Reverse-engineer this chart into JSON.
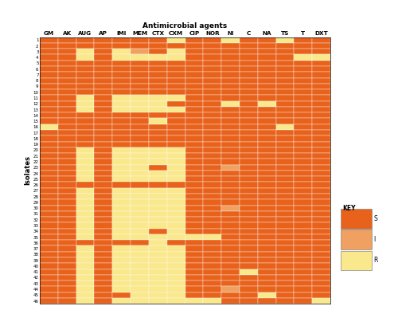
{
  "columns": [
    "GM",
    "AK",
    "AUG",
    "AP",
    "IMI",
    "MEM",
    "CTX",
    "CXM",
    "CIP",
    "NOR",
    "NI",
    "C",
    "NA",
    "TS",
    "T",
    "DXT"
  ],
  "title": "Antimicrobial agents",
  "ylabel": "Isolates",
  "color_S": "#E8621C",
  "color_I": "#F0A060",
  "color_R": "#FAE88C",
  "n_isolates": 46,
  "data": [
    [
      0,
      0,
      0,
      0,
      0,
      0,
      0,
      2,
      0,
      0,
      2,
      0,
      0,
      2,
      0,
      0
    ],
    [
      0,
      0,
      0,
      0,
      0,
      0,
      0,
      0,
      0,
      0,
      0,
      0,
      0,
      0,
      0,
      0
    ],
    [
      0,
      0,
      2,
      0,
      2,
      1,
      0,
      2,
      0,
      0,
      0,
      0,
      0,
      0,
      0,
      0
    ],
    [
      0,
      0,
      2,
      0,
      2,
      2,
      2,
      2,
      0,
      0,
      0,
      0,
      0,
      0,
      2,
      2
    ],
    [
      0,
      0,
      0,
      0,
      0,
      0,
      0,
      0,
      0,
      0,
      0,
      0,
      0,
      0,
      0,
      0
    ],
    [
      0,
      0,
      0,
      0,
      0,
      0,
      0,
      0,
      0,
      0,
      0,
      0,
      0,
      0,
      0,
      0
    ],
    [
      0,
      0,
      0,
      0,
      0,
      0,
      0,
      0,
      0,
      0,
      0,
      0,
      0,
      0,
      0,
      0
    ],
    [
      0,
      0,
      0,
      0,
      0,
      0,
      0,
      0,
      0,
      0,
      0,
      0,
      0,
      0,
      0,
      0
    ],
    [
      0,
      0,
      0,
      0,
      0,
      0,
      0,
      0,
      0,
      0,
      0,
      0,
      0,
      0,
      0,
      0
    ],
    [
      0,
      0,
      0,
      0,
      0,
      0,
      0,
      0,
      0,
      0,
      0,
      0,
      0,
      0,
      0,
      0
    ],
    [
      0,
      0,
      2,
      0,
      2,
      2,
      2,
      2,
      0,
      0,
      0,
      0,
      0,
      0,
      0,
      0
    ],
    [
      0,
      0,
      2,
      0,
      2,
      2,
      2,
      0,
      0,
      0,
      2,
      0,
      2,
      0,
      0,
      0
    ],
    [
      0,
      0,
      2,
      0,
      2,
      2,
      2,
      2,
      0,
      0,
      0,
      0,
      0,
      0,
      0,
      0
    ],
    [
      0,
      0,
      0,
      0,
      0,
      0,
      0,
      0,
      0,
      0,
      0,
      0,
      0,
      0,
      0,
      0
    ],
    [
      0,
      0,
      0,
      0,
      0,
      0,
      2,
      0,
      0,
      0,
      0,
      0,
      0,
      0,
      0,
      0
    ],
    [
      2,
      0,
      0,
      0,
      0,
      0,
      0,
      0,
      0,
      0,
      0,
      0,
      0,
      2,
      0,
      0
    ],
    [
      0,
      0,
      0,
      0,
      0,
      0,
      0,
      0,
      0,
      0,
      0,
      0,
      0,
      0,
      0,
      0
    ],
    [
      0,
      0,
      0,
      0,
      0,
      0,
      0,
      0,
      0,
      0,
      0,
      0,
      0,
      0,
      0,
      0
    ],
    [
      0,
      0,
      0,
      0,
      0,
      0,
      0,
      0,
      0,
      0,
      0,
      0,
      0,
      0,
      0,
      0
    ],
    [
      0,
      0,
      2,
      0,
      2,
      2,
      2,
      2,
      0,
      0,
      0,
      0,
      0,
      0,
      0,
      0
    ],
    [
      0,
      0,
      2,
      0,
      2,
      2,
      2,
      2,
      0,
      0,
      0,
      0,
      0,
      0,
      0,
      0
    ],
    [
      0,
      0,
      2,
      0,
      2,
      2,
      2,
      2,
      0,
      0,
      0,
      0,
      0,
      0,
      0,
      0
    ],
    [
      0,
      0,
      2,
      0,
      2,
      2,
      0,
      2,
      0,
      0,
      1,
      0,
      0,
      0,
      0,
      0
    ],
    [
      0,
      0,
      2,
      0,
      2,
      2,
      2,
      2,
      0,
      0,
      0,
      0,
      0,
      0,
      0,
      0
    ],
    [
      0,
      0,
      2,
      0,
      2,
      2,
      2,
      2,
      0,
      0,
      0,
      0,
      0,
      0,
      0,
      0
    ],
    [
      0,
      0,
      0,
      0,
      0,
      0,
      0,
      0,
      0,
      0,
      0,
      0,
      0,
      0,
      0,
      0
    ],
    [
      0,
      0,
      2,
      0,
      2,
      2,
      2,
      2,
      0,
      0,
      0,
      0,
      0,
      0,
      0,
      0
    ],
    [
      0,
      0,
      2,
      0,
      2,
      2,
      2,
      2,
      0,
      0,
      0,
      0,
      0,
      0,
      0,
      0
    ],
    [
      0,
      0,
      2,
      0,
      2,
      2,
      2,
      2,
      0,
      0,
      0,
      0,
      0,
      0,
      0,
      0
    ],
    [
      0,
      0,
      2,
      0,
      2,
      2,
      2,
      2,
      0,
      0,
      1,
      0,
      0,
      0,
      0,
      0
    ],
    [
      0,
      0,
      2,
      0,
      2,
      2,
      2,
      2,
      0,
      0,
      0,
      0,
      0,
      0,
      0,
      0
    ],
    [
      0,
      0,
      2,
      0,
      2,
      2,
      2,
      2,
      0,
      0,
      0,
      0,
      0,
      0,
      0,
      0
    ],
    [
      0,
      0,
      2,
      0,
      2,
      2,
      2,
      2,
      0,
      0,
      0,
      0,
      0,
      0,
      0,
      0
    ],
    [
      0,
      0,
      2,
      0,
      2,
      2,
      0,
      2,
      0,
      0,
      0,
      0,
      0,
      0,
      0,
      0
    ],
    [
      0,
      0,
      2,
      0,
      2,
      2,
      2,
      2,
      2,
      2,
      0,
      0,
      0,
      0,
      0,
      0
    ],
    [
      0,
      0,
      0,
      0,
      0,
      0,
      2,
      0,
      0,
      0,
      0,
      0,
      0,
      0,
      0,
      0
    ],
    [
      0,
      0,
      2,
      0,
      2,
      2,
      2,
      2,
      0,
      0,
      0,
      0,
      0,
      0,
      0,
      0
    ],
    [
      0,
      0,
      2,
      0,
      2,
      2,
      2,
      2,
      0,
      0,
      0,
      0,
      0,
      0,
      0,
      0
    ],
    [
      0,
      0,
      2,
      0,
      2,
      2,
      2,
      2,
      0,
      0,
      0,
      0,
      0,
      0,
      0,
      0
    ],
    [
      0,
      0,
      2,
      0,
      2,
      2,
      2,
      2,
      0,
      0,
      0,
      0,
      0,
      0,
      0,
      0
    ],
    [
      0,
      0,
      2,
      0,
      2,
      2,
      2,
      2,
      0,
      0,
      0,
      2,
      0,
      0,
      0,
      0
    ],
    [
      0,
      0,
      2,
      0,
      2,
      2,
      2,
      2,
      0,
      0,
      0,
      0,
      0,
      0,
      0,
      0
    ],
    [
      0,
      0,
      2,
      0,
      2,
      2,
      2,
      2,
      0,
      0,
      0,
      0,
      0,
      0,
      0,
      0
    ],
    [
      0,
      0,
      2,
      0,
      2,
      2,
      2,
      2,
      0,
      0,
      1,
      0,
      0,
      0,
      0,
      0
    ],
    [
      0,
      0,
      2,
      0,
      0,
      2,
      2,
      2,
      0,
      0,
      0,
      0,
      2,
      0,
      0,
      0
    ],
    [
      0,
      0,
      2,
      0,
      2,
      2,
      2,
      2,
      2,
      2,
      0,
      0,
      0,
      0,
      0,
      2
    ]
  ]
}
